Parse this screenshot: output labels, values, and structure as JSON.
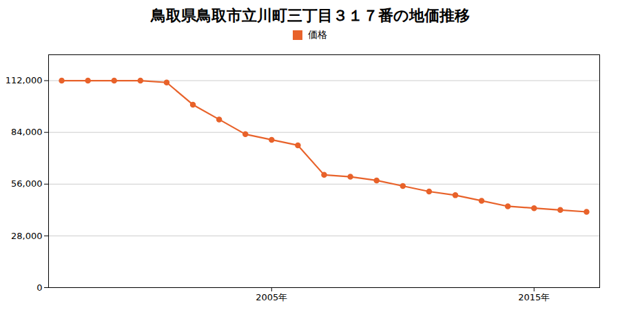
{
  "chart_data": {
    "type": "line",
    "title": "鳥取県鳥取市立川町三丁目３１７番の地価推移",
    "x": [
      1997,
      1998,
      1999,
      2000,
      2001,
      2002,
      2003,
      2004,
      2005,
      2006,
      2007,
      2008,
      2009,
      2010,
      2011,
      2012,
      2013,
      2014,
      2015,
      2016,
      2017
    ],
    "series": [
      {
        "name": "価格",
        "color": "#e8622a",
        "marker": "circle",
        "values": [
          112000,
          112000,
          112000,
          112000,
          111000,
          99000,
          91000,
          83000,
          80000,
          77000,
          61000,
          60000,
          58000,
          55000,
          52000,
          50000,
          47000,
          44000,
          43000,
          42000,
          41000
        ]
      }
    ],
    "xlim": [
      1996.5,
      2017.5
    ],
    "xticks": [
      {
        "value": 2005,
        "label": "2005年"
      },
      {
        "value": 2015,
        "label": "2015年"
      }
    ],
    "ylim": [
      0,
      126000
    ],
    "yticks": [
      0,
      {
        "value": 28000,
        "label": "28,000"
      },
      {
        "value": 56000,
        "label": "56,000"
      },
      {
        "value": 84000,
        "label": "84,000"
      },
      {
        "value": 112000,
        "label": "112,000"
      }
    ],
    "grid": true,
    "legend": "top"
  }
}
